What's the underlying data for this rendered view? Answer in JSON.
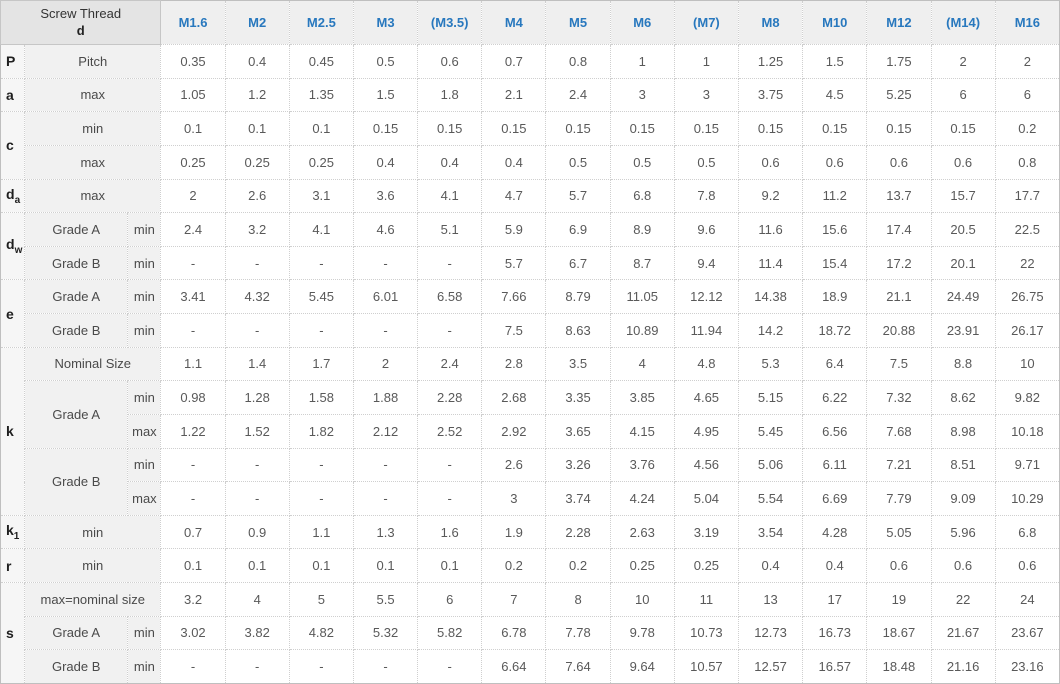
{
  "colors": {
    "header_accent": "#2878be",
    "grid_border": "#cfcfcf",
    "corner_header_bg": "#e4e4e4",
    "column_header_bg": "#efefef",
    "row_label_bg": "#f1f1f1",
    "value_text": "#595959"
  },
  "chart_data": {
    "type": "table",
    "title": "",
    "corner_header": [
      "Screw Thread",
      "d"
    ],
    "columns": [
      "M1.6",
      "M2",
      "M2.5",
      "M3",
      "(M3.5)",
      "M4",
      "M5",
      "M6",
      "(M7)",
      "M8",
      "M10",
      "M12",
      "(M14)",
      "M16"
    ],
    "row_groups": [
      {
        "letter": "P",
        "letter_sub": "",
        "rows": [
          {
            "label": "Pitch",
            "sublabel": "",
            "values": [
              "0.35",
              "0.4",
              "0.45",
              "0.5",
              "0.6",
              "0.7",
              "0.8",
              "1",
              "1",
              "1.25",
              "1.5",
              "1.75",
              "2",
              "2"
            ]
          }
        ]
      },
      {
        "letter": "a",
        "letter_sub": "",
        "rows": [
          {
            "label": "max",
            "sublabel": "",
            "values": [
              "1.05",
              "1.2",
              "1.35",
              "1.5",
              "1.8",
              "2.1",
              "2.4",
              "3",
              "3",
              "3.75",
              "4.5",
              "5.25",
              "6",
              "6"
            ]
          }
        ]
      },
      {
        "letter": "c",
        "letter_sub": "",
        "rows": [
          {
            "label": "min",
            "sublabel": "",
            "values": [
              "0.1",
              "0.1",
              "0.1",
              "0.15",
              "0.15",
              "0.15",
              "0.15",
              "0.15",
              "0.15",
              "0.15",
              "0.15",
              "0.15",
              "0.15",
              "0.2"
            ]
          },
          {
            "label": "max",
            "sublabel": "",
            "values": [
              "0.25",
              "0.25",
              "0.25",
              "0.4",
              "0.4",
              "0.4",
              "0.5",
              "0.5",
              "0.5",
              "0.6",
              "0.6",
              "0.6",
              "0.6",
              "0.8"
            ]
          }
        ]
      },
      {
        "letter": "d",
        "letter_sub": "a",
        "rows": [
          {
            "label": "max",
            "sublabel": "",
            "values": [
              "2",
              "2.6",
              "3.1",
              "3.6",
              "4.1",
              "4.7",
              "5.7",
              "6.8",
              "7.8",
              "9.2",
              "11.2",
              "13.7",
              "15.7",
              "17.7"
            ]
          }
        ]
      },
      {
        "letter": "d",
        "letter_sub": "w",
        "rows": [
          {
            "label": "Grade A",
            "sublabel": "min",
            "values": [
              "2.4",
              "3.2",
              "4.1",
              "4.6",
              "5.1",
              "5.9",
              "6.9",
              "8.9",
              "9.6",
              "11.6",
              "15.6",
              "17.4",
              "20.5",
              "22.5"
            ]
          },
          {
            "label": "Grade B",
            "sublabel": "min",
            "values": [
              "-",
              "-",
              "-",
              "-",
              "-",
              "5.7",
              "6.7",
              "8.7",
              "9.4",
              "11.4",
              "15.4",
              "17.2",
              "20.1",
              "22"
            ]
          }
        ]
      },
      {
        "letter": "e",
        "letter_sub": "",
        "rows": [
          {
            "label": "Grade A",
            "sublabel": "min",
            "values": [
              "3.41",
              "4.32",
              "5.45",
              "6.01",
              "6.58",
              "7.66",
              "8.79",
              "11.05",
              "12.12",
              "14.38",
              "18.9",
              "21.1",
              "24.49",
              "26.75"
            ]
          },
          {
            "label": "Grade B",
            "sublabel": "min",
            "values": [
              "-",
              "-",
              "-",
              "-",
              "-",
              "7.5",
              "8.63",
              "10.89",
              "11.94",
              "14.2",
              "18.72",
              "20.88",
              "23.91",
              "26.17"
            ]
          }
        ]
      },
      {
        "letter": "k",
        "letter_sub": "",
        "rows": [
          {
            "label": "Nominal Size",
            "sublabel": "",
            "values": [
              "1.1",
              "1.4",
              "1.7",
              "2",
              "2.4",
              "2.8",
              "3.5",
              "4",
              "4.8",
              "5.3",
              "6.4",
              "7.5",
              "8.8",
              "10"
            ]
          },
          {
            "label": "Grade A",
            "label_rowspan": 2,
            "sublabel": "min",
            "values": [
              "0.98",
              "1.28",
              "1.58",
              "1.88",
              "2.28",
              "2.68",
              "3.35",
              "3.85",
              "4.65",
              "5.15",
              "6.22",
              "7.32",
              "8.62",
              "9.82"
            ]
          },
          {
            "label": "",
            "sublabel": "max",
            "values": [
              "1.22",
              "1.52",
              "1.82",
              "2.12",
              "2.52",
              "2.92",
              "3.65",
              "4.15",
              "4.95",
              "5.45",
              "6.56",
              "7.68",
              "8.98",
              "10.18"
            ]
          },
          {
            "label": "Grade B",
            "label_rowspan": 2,
            "sublabel": "min",
            "values": [
              "-",
              "-",
              "-",
              "-",
              "-",
              "2.6",
              "3.26",
              "3.76",
              "4.56",
              "5.06",
              "6.11",
              "7.21",
              "8.51",
              "9.71"
            ]
          },
          {
            "label": "",
            "sublabel": "max",
            "values": [
              "-",
              "-",
              "-",
              "-",
              "-",
              "3",
              "3.74",
              "4.24",
              "5.04",
              "5.54",
              "6.69",
              "7.79",
              "9.09",
              "10.29"
            ]
          }
        ]
      },
      {
        "letter": "k",
        "letter_sub": "1",
        "rows": [
          {
            "label": "min",
            "sublabel": "",
            "values": [
              "0.7",
              "0.9",
              "1.1",
              "1.3",
              "1.6",
              "1.9",
              "2.28",
              "2.63",
              "3.19",
              "3.54",
              "4.28",
              "5.05",
              "5.96",
              "6.8"
            ]
          }
        ]
      },
      {
        "letter": "r",
        "letter_sub": "",
        "rows": [
          {
            "label": "min",
            "sublabel": "",
            "values": [
              "0.1",
              "0.1",
              "0.1",
              "0.1",
              "0.1",
              "0.2",
              "0.2",
              "0.25",
              "0.25",
              "0.4",
              "0.4",
              "0.6",
              "0.6",
              "0.6"
            ]
          }
        ]
      },
      {
        "letter": "s",
        "letter_sub": "",
        "rows": [
          {
            "label": "max=nominal size",
            "sublabel": "",
            "values": [
              "3.2",
              "4",
              "5",
              "5.5",
              "6",
              "7",
              "8",
              "10",
              "11",
              "13",
              "17",
              "19",
              "22",
              "24"
            ]
          },
          {
            "label": "Grade A",
            "sublabel": "min",
            "values": [
              "3.02",
              "3.82",
              "4.82",
              "5.32",
              "5.82",
              "6.78",
              "7.78",
              "9.78",
              "10.73",
              "12.73",
              "16.73",
              "18.67",
              "21.67",
              "23.67"
            ]
          },
          {
            "label": "Grade B",
            "sublabel": "min",
            "values": [
              "-",
              "-",
              "-",
              "-",
              "-",
              "6.64",
              "7.64",
              "9.64",
              "10.57",
              "12.57",
              "16.57",
              "18.48",
              "21.16",
              "23.16"
            ]
          }
        ]
      }
    ]
  }
}
